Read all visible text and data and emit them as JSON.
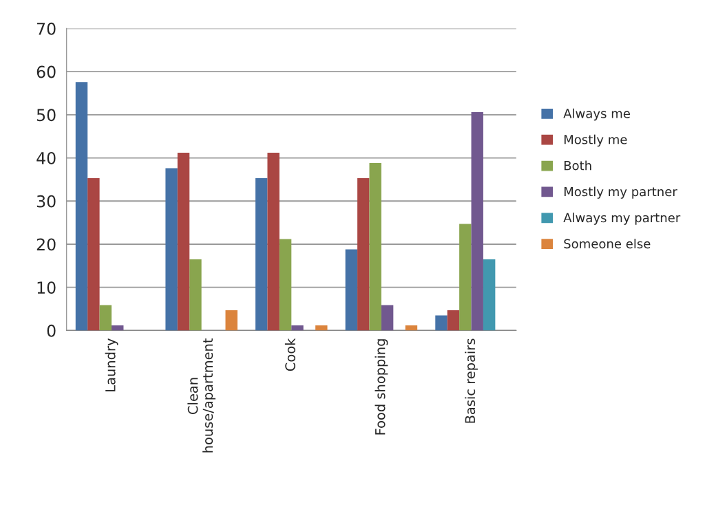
{
  "chart_data": {
    "type": "bar",
    "categories": [
      "Laundry",
      "Clean\nhouse/apartment",
      "Cook",
      "Food shopping",
      "Basic repairs"
    ],
    "series": [
      {
        "name": "Always me",
        "color": "#4572a7",
        "values": [
          57.6,
          37.6,
          35.3,
          18.8,
          3.5
        ]
      },
      {
        "name": "Mostly me",
        "color": "#aa4643",
        "values": [
          35.3,
          41.2,
          41.2,
          35.3,
          4.7
        ]
      },
      {
        "name": "Both",
        "color": "#89a54e",
        "values": [
          5.9,
          16.5,
          21.2,
          38.8,
          24.7
        ]
      },
      {
        "name": "Mostly my partner",
        "color": "#71588f",
        "values": [
          1.2,
          null,
          1.2,
          5.9,
          50.6
        ]
      },
      {
        "name": "Always my partner",
        "color": "#4198af",
        "values": [
          null,
          null,
          null,
          null,
          16.5
        ]
      },
      {
        "name": "Someone else",
        "color": "#db843d",
        "values": [
          null,
          4.7,
          1.2,
          1.2,
          null
        ]
      }
    ],
    "ylim": [
      0,
      70
    ],
    "yticks": [
      0,
      10,
      20,
      30,
      40,
      50,
      60,
      70
    ],
    "grid": "y",
    "legend": "right"
  }
}
